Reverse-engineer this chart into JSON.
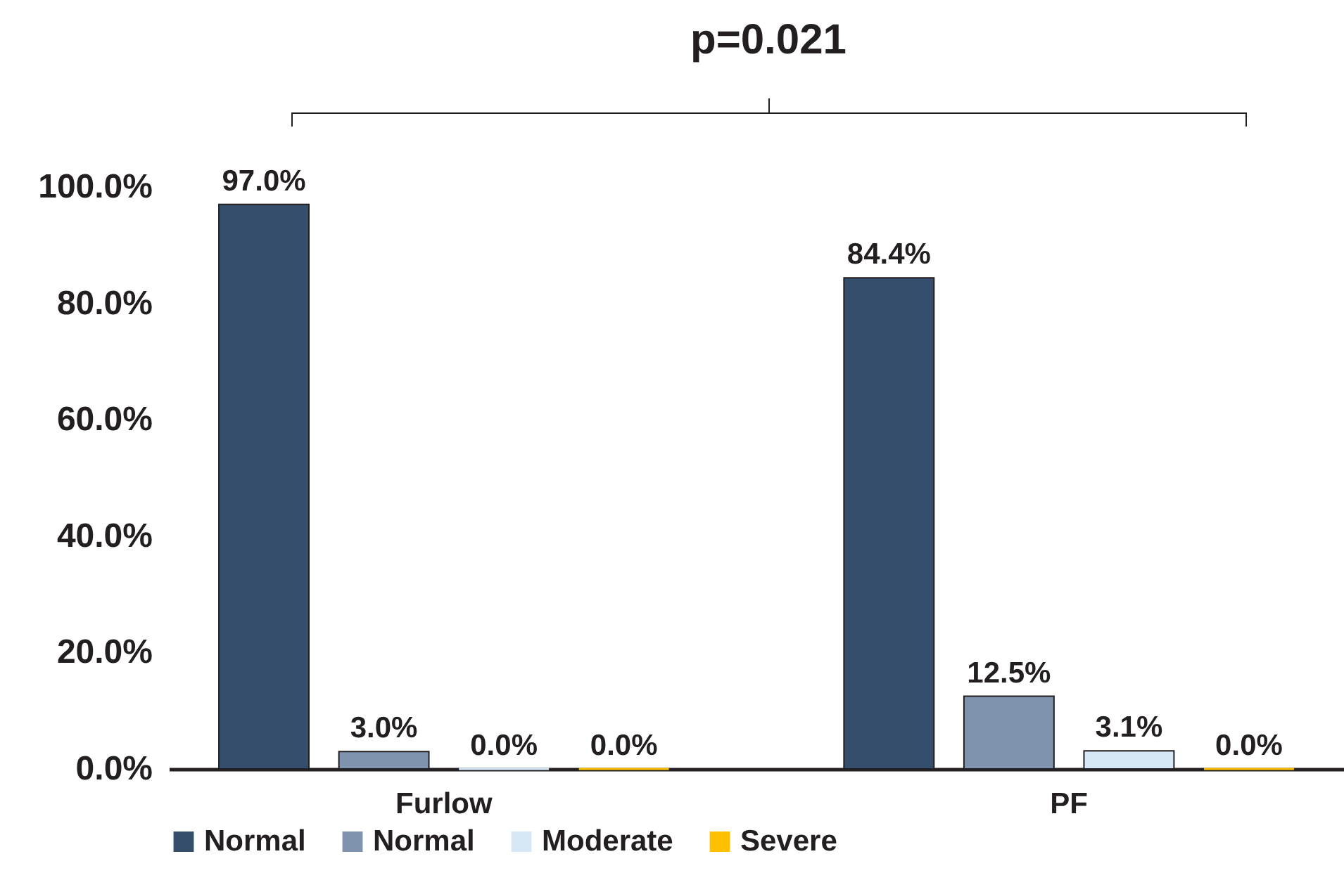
{
  "chart_data": {
    "type": "bar",
    "categories": [
      "Furlow",
      "PF"
    ],
    "series": [
      {
        "name": "Normal",
        "color": "#344e6c",
        "values": [
          97.0,
          84.4
        ],
        "value_labels": [
          "97.0%",
          "84.4%"
        ]
      },
      {
        "name": "Normal",
        "color": "#7f93ae",
        "values": [
          3.0,
          12.5
        ],
        "value_labels": [
          "3.0%",
          "12.5%"
        ]
      },
      {
        "name": "Moderate",
        "color": "#d6e8f5",
        "values": [
          0.0,
          3.1
        ],
        "value_labels": [
          "0.0%",
          "3.1%"
        ]
      },
      {
        "name": "Severe",
        "color": "#ffc000",
        "values": [
          0.0,
          0.0
        ],
        "value_labels": [
          "0.0%",
          "0.0%"
        ]
      }
    ],
    "ylim": [
      0,
      100
    ],
    "yticks": [
      {
        "value": 0,
        "label": "0.0%"
      },
      {
        "value": 20,
        "label": "20.0%"
      },
      {
        "value": 40,
        "label": "40.0%"
      },
      {
        "value": 60,
        "label": "60.0%"
      },
      {
        "value": 80,
        "label": "80.0%"
      },
      {
        "value": 100,
        "label": "100.0%"
      }
    ],
    "annotations": [
      "p=0.021"
    ],
    "legend": "bottom",
    "grid": false
  }
}
